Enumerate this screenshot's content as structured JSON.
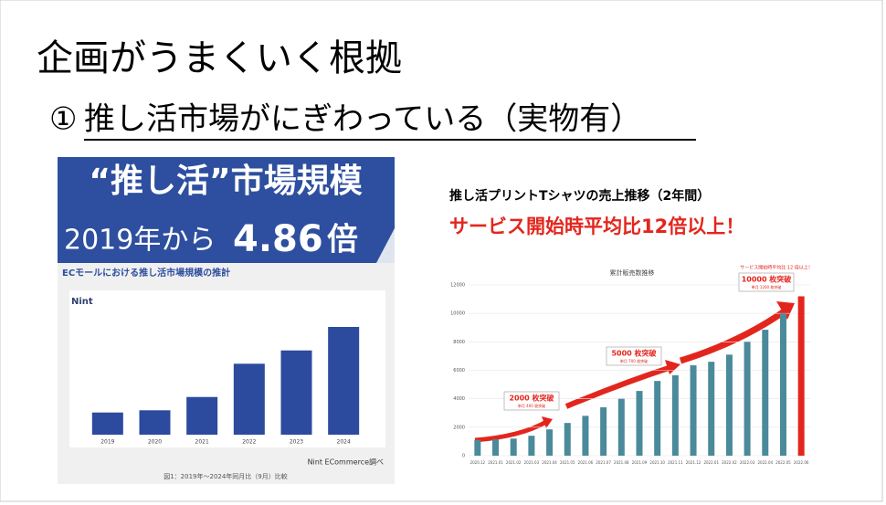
{
  "title": "企画がうまくいく根拠",
  "subtitle": {
    "marker": "①",
    "text": "推し活市場がにぎわっている（実物有）"
  },
  "banner": {
    "line1": "“推し活”市場規模",
    "prefix": "2019年から",
    "number": 4.86,
    "suffix": "倍"
  },
  "left_caption": "図1：2019年〜2024年同月比（9月）比較",
  "right_heading": "推し活プリントTシャツの売上推移（2年間）",
  "right_highlight": "サービス開始時平均比12倍以上！",
  "chart_data": [
    {
      "type": "bar",
      "title": "ECモールにおける推し活市場規模の推計",
      "logo": "Nint",
      "source": "Nint ECommerce調べ",
      "categories": [
        "2019",
        "2020",
        "2021",
        "2022",
        "2023",
        "2024"
      ],
      "values": [
        1,
        1.1,
        1.7,
        3.2,
        3.8,
        4.86
      ],
      "color": "#2c4a9e"
    },
    {
      "type": "bar",
      "title": "累計販売数推移",
      "categories": [
        "2020.12",
        "2021.01",
        "2021.02",
        "2021.03",
        "2021.04",
        "2021.05",
        "2021.06",
        "2021.07",
        "2021.08",
        "2021.09",
        "2021.10",
        "2021.11",
        "2021.12",
        "2022.01",
        "2022.02",
        "2022.03",
        "2022.04",
        "2022.05",
        "2022.06"
      ],
      "values": [
        1100,
        1150,
        1200,
        1400,
        1850,
        2300,
        2800,
        3400,
        4000,
        4550,
        5250,
        5650,
        6350,
        6600,
        7100,
        8000,
        8850,
        10000,
        11200
      ],
      "colors": [
        "#4a8a9a",
        "#4a8a9a",
        "#4a8a9a",
        "#4a8a9a",
        "#4a8a9a",
        "#4a8a9a",
        "#4a8a9a",
        "#4a8a9a",
        "#4a8a9a",
        "#4a8a9a",
        "#4a8a9a",
        "#4a8a9a",
        "#4a8a9a",
        "#4a8a9a",
        "#4a8a9a",
        "#4a8a9a",
        "#4a8a9a",
        "#4a8a9a",
        "#e3261d"
      ],
      "ylim": [
        0,
        12000
      ],
      "yticks": [
        0,
        2000,
        4000,
        6000,
        8000,
        10000,
        12000
      ],
      "grid": true,
      "annotations": [
        {
          "text": "2000 枚突破",
          "sub": "単月 400 枚突破"
        },
        {
          "text": "5000 枚突破",
          "sub": "単月 700 枚突破"
        },
        {
          "text": "10000 枚突破",
          "sub": "単月 1200 枚突破"
        }
      ],
      "top_note": "サービス開始時平均比 12 倍以上！"
    }
  ]
}
